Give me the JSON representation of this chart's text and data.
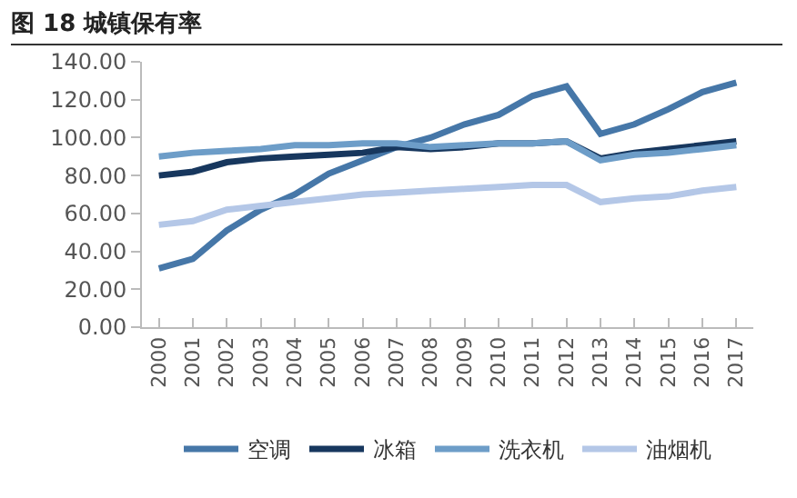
{
  "chart_data": {
    "type": "line",
    "title": "图 18 城镇保有率",
    "categories": [
      "2000",
      "2001",
      "2002",
      "2003",
      "2004",
      "2005",
      "2006",
      "2007",
      "2008",
      "2009",
      "2010",
      "2011",
      "2012",
      "2013",
      "2014",
      "2015",
      "2016",
      "2017"
    ],
    "series": [
      {
        "name": "空调",
        "color": "#4677a8",
        "values": [
          31,
          36,
          51,
          62,
          70,
          81,
          88,
          95,
          100,
          107,
          112,
          122,
          127,
          102,
          107,
          115,
          124,
          129
        ]
      },
      {
        "name": "冰箱",
        "color": "#17375e",
        "values": [
          80,
          82,
          87,
          89,
          90,
          91,
          92,
          95,
          94,
          95,
          97,
          97,
          98,
          89,
          92,
          94,
          96,
          98
        ]
      },
      {
        "name": "洗衣机",
        "color": "#6d9dc8",
        "values": [
          90,
          92,
          93,
          94,
          96,
          96,
          97,
          97,
          95,
          96,
          97,
          97,
          98,
          88,
          91,
          92,
          94,
          96
        ]
      },
      {
        "name": "油烟机",
        "color": "#b4c7e7",
        "values": [
          54,
          56,
          62,
          64,
          66,
          68,
          70,
          71,
          72,
          73,
          74,
          75,
          75,
          66,
          68,
          69,
          72,
          74
        ]
      }
    ],
    "ylim": [
      0,
      140
    ],
    "yticks": [
      {
        "value": 0,
        "label": "0.00"
      },
      {
        "value": 20,
        "label": "20.00"
      },
      {
        "value": 40,
        "label": "40.00"
      },
      {
        "value": 60,
        "label": "60.00"
      },
      {
        "value": 80,
        "label": "80.00"
      },
      {
        "value": 100,
        "label": "100.00"
      },
      {
        "value": 120,
        "label": "120.00"
      },
      {
        "value": 140,
        "label": "140.00"
      }
    ],
    "grid": false,
    "legend": "bottom",
    "marker": "none",
    "line_style": "solid"
  }
}
